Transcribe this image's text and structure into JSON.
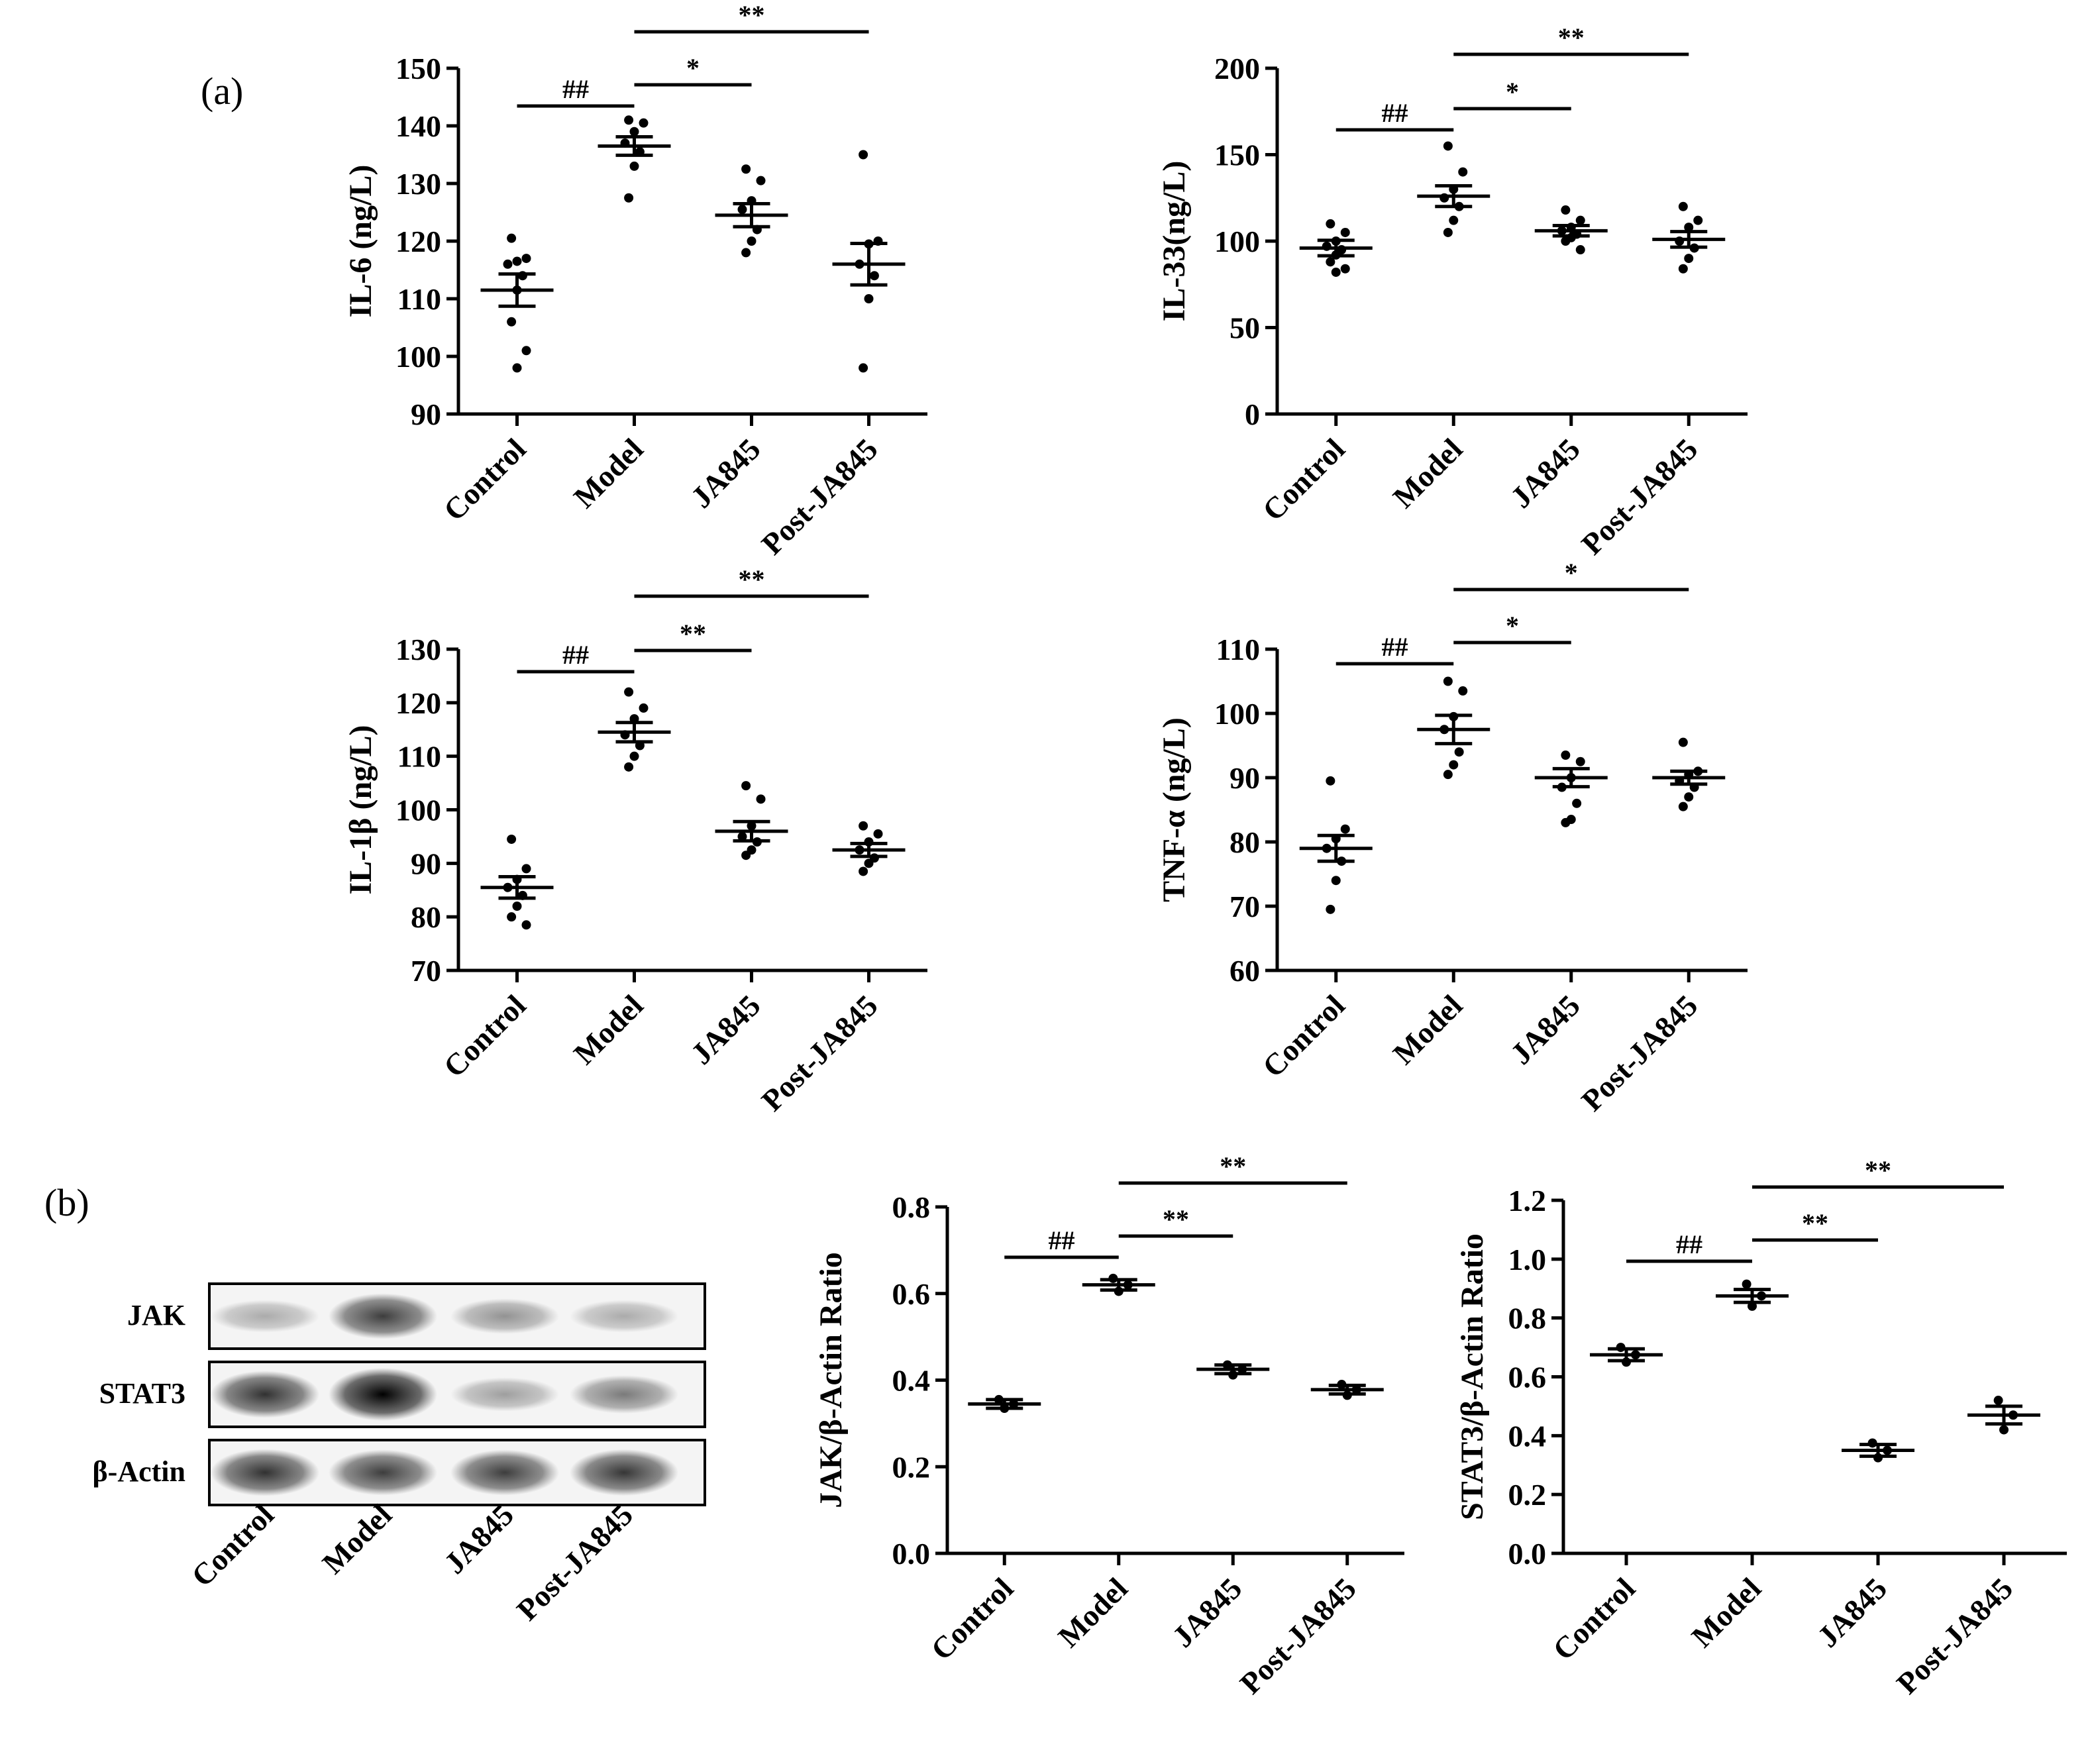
{
  "panel_labels": [
    "(a)",
    "(b)"
  ],
  "chart_data": [
    {
      "type": "scatter",
      "ylabel": "IL-6 (ng/L)",
      "categories": [
        "Control",
        "Model",
        "JA845",
        "Post-JA845"
      ],
      "ylim": [
        90,
        150
      ],
      "yticks": [
        90,
        100,
        110,
        120,
        130,
        140,
        150
      ],
      "mean": [
        111.5,
        136.5,
        124.5,
        116
      ],
      "sem": [
        2.8,
        1.6,
        2.0,
        3.6
      ],
      "points": [
        [
          120.5,
          117,
          116.5,
          116,
          114,
          111.5,
          106,
          101,
          98
        ],
        [
          141,
          140.5,
          139,
          137,
          135.5,
          133,
          127.5
        ],
        [
          132.5,
          130.5,
          127,
          125.5,
          122,
          120,
          118
        ],
        [
          135,
          120,
          119.5,
          116,
          114,
          110,
          98
        ]
      ],
      "significance": [
        {
          "from": "Control",
          "to": "Model",
          "label": "##"
        },
        {
          "from": "Model",
          "to": "JA845",
          "label": "*"
        },
        {
          "from": "Model",
          "to": "Post-JA845",
          "label": "**"
        }
      ]
    },
    {
      "type": "scatter",
      "ylabel": "IL-33(ng/L)",
      "categories": [
        "Control",
        "Model",
        "JA845",
        "Post-JA845"
      ],
      "ylim": [
        0,
        200
      ],
      "yticks": [
        0,
        50,
        100,
        150,
        200
      ],
      "mean": [
        96,
        126,
        106,
        101
      ],
      "sem": [
        4.5,
        6.0,
        3.0,
        4.5
      ],
      "points": [
        [
          110,
          105,
          100,
          97,
          95,
          92,
          88,
          84,
          82
        ],
        [
          155,
          140,
          130,
          125,
          120,
          112,
          105
        ],
        [
          118,
          112,
          108,
          106,
          104,
          102,
          100,
          95
        ],
        [
          120,
          112,
          108,
          100,
          96,
          90,
          84
        ]
      ],
      "significance": [
        {
          "from": "Control",
          "to": "Model",
          "label": "##"
        },
        {
          "from": "Model",
          "to": "JA845",
          "label": "*"
        },
        {
          "from": "Model",
          "to": "Post-JA845",
          "label": "**"
        }
      ]
    },
    {
      "type": "scatter",
      "ylabel": "IL-1β (ng/L)",
      "categories": [
        "Control",
        "Model",
        "JA845",
        "Post-JA845"
      ],
      "ylim": [
        70,
        130
      ],
      "yticks": [
        70,
        80,
        90,
        100,
        110,
        120,
        130
      ],
      "mean": [
        85.5,
        114.5,
        96,
        92.5
      ],
      "sem": [
        2.0,
        1.8,
        1.8,
        1.2
      ],
      "points": [
        [
          94.5,
          89,
          87,
          85.5,
          84,
          82,
          80,
          78.5
        ],
        [
          122,
          119,
          117,
          114,
          112,
          110,
          108
        ],
        [
          104.5,
          102,
          97,
          95,
          94,
          92.5,
          91.5
        ],
        [
          97,
          95.5,
          94,
          92.5,
          91,
          90,
          88.5
        ]
      ],
      "significance": [
        {
          "from": "Control",
          "to": "Model",
          "label": "##"
        },
        {
          "from": "Model",
          "to": "JA845",
          "label": "**"
        },
        {
          "from": "Model",
          "to": "Post-JA845",
          "label": "**"
        }
      ]
    },
    {
      "type": "scatter",
      "ylabel": "TNF-α (ng/L)",
      "categories": [
        "Control",
        "Model",
        "JA845",
        "Post-JA845"
      ],
      "ylim": [
        60,
        110
      ],
      "yticks": [
        60,
        70,
        80,
        90,
        100,
        110
      ],
      "mean": [
        79,
        97.5,
        90,
        90
      ],
      "sem": [
        2.0,
        2.2,
        1.4,
        1.0
      ],
      "points": [
        [
          89.5,
          82,
          80.5,
          79,
          77,
          74,
          69.5
        ],
        [
          105,
          103.5,
          99.5,
          97.5,
          94,
          92,
          90.5
        ],
        [
          93.5,
          92.5,
          90,
          88.5,
          86,
          83.5,
          83
        ],
        [
          95.5,
          91,
          90.5,
          89.5,
          88.5,
          87,
          85.5
        ]
      ],
      "significance": [
        {
          "from": "Control",
          "to": "Model",
          "label": "##"
        },
        {
          "from": "Model",
          "to": "JA845",
          "label": "*"
        },
        {
          "from": "Model",
          "to": "Post-JA845",
          "label": "*"
        }
      ]
    },
    {
      "type": "scatter",
      "ylabel": "JAK/β-Actin  Ratio",
      "categories": [
        "Control",
        "Model",
        "JA845",
        "Post-JA845"
      ],
      "ylim": [
        0,
        0.8
      ],
      "yticks": [
        "0.0",
        "0.2",
        "0.4",
        "0.6",
        "0.8"
      ],
      "mean": [
        0.345,
        0.62,
        0.425,
        0.378
      ],
      "sem": [
        0.01,
        0.012,
        0.01,
        0.01
      ],
      "points": [
        [
          0.355,
          0.345,
          0.335
        ],
        [
          0.635,
          0.62,
          0.605
        ],
        [
          0.435,
          0.425,
          0.412
        ],
        [
          0.39,
          0.378,
          0.365
        ]
      ],
      "significance": [
        {
          "from": "Control",
          "to": "Model",
          "label": "##"
        },
        {
          "from": "Model",
          "to": "JA845",
          "label": "**"
        },
        {
          "from": "Model",
          "to": "Post-JA845",
          "label": "**"
        }
      ]
    },
    {
      "type": "scatter",
      "ylabel": "STAT3/β-Actin  Ratio",
      "categories": [
        "Control",
        "Model",
        "JA845",
        "Post-JA845"
      ],
      "ylim": [
        0,
        1.2
      ],
      "yticks": [
        "0.0",
        "0.2",
        "0.4",
        "0.6",
        "0.8",
        "1.0",
        "1.2"
      ],
      "mean": [
        0.675,
        0.875,
        0.35,
        0.47
      ],
      "sem": [
        0.02,
        0.022,
        0.02,
        0.03
      ],
      "points": [
        [
          0.7,
          0.675,
          0.65
        ],
        [
          0.915,
          0.875,
          0.84
        ],
        [
          0.375,
          0.35,
          0.325
        ],
        [
          0.52,
          0.47,
          0.42
        ]
      ],
      "significance": [
        {
          "from": "Control",
          "to": "Model",
          "label": "##"
        },
        {
          "from": "Model",
          "to": "JA845",
          "label": "**"
        },
        {
          "from": "Model",
          "to": "Post-JA845",
          "label": "**"
        }
      ]
    }
  ],
  "western_blot": {
    "rows": [
      "JAK",
      "STAT3",
      "β-Actin"
    ],
    "lanes": [
      "Control",
      "Model",
      "JA845",
      "Post-JA845"
    ],
    "intensity": [
      [
        0.3,
        0.75,
        0.4,
        0.3
      ],
      [
        0.8,
        1.0,
        0.35,
        0.5
      ],
      [
        0.8,
        0.75,
        0.75,
        0.78
      ]
    ]
  }
}
